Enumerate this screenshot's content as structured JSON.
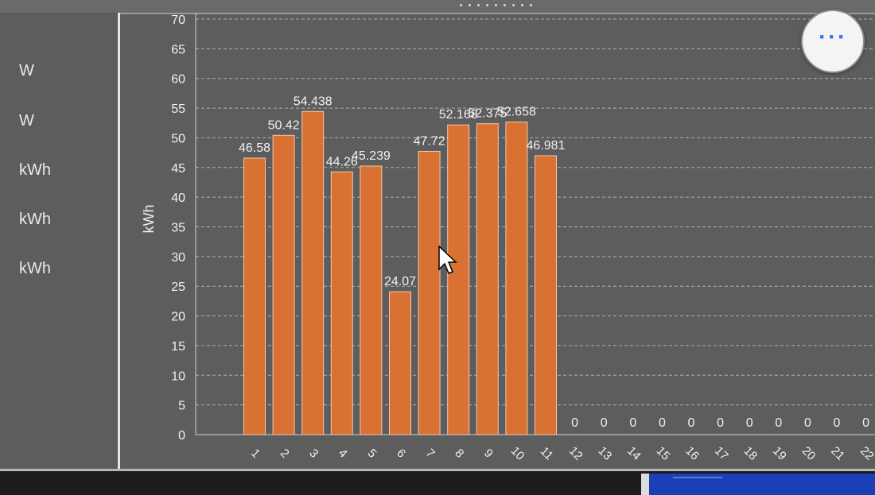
{
  "side_panel": {
    "unit_labels": [
      "W",
      "W",
      "kWh",
      "kWh",
      "kWh"
    ]
  },
  "toolbar": {
    "more_label": "···"
  },
  "colors": {
    "bar": "#d97133",
    "bar_stroke": "#f2c9ae",
    "background": "#5d5d5d",
    "grid": "#b0b0b0",
    "text": "#f0f0f0"
  },
  "icons": {
    "cursor": "arrow-cursor-icon",
    "more": "more-options-icon"
  },
  "chart_data": {
    "type": "bar",
    "ylabel": "kWh",
    "ylim": [
      0,
      70
    ],
    "yticks": [
      0,
      5,
      10,
      15,
      20,
      25,
      30,
      35,
      40,
      45,
      50,
      55,
      60,
      65,
      70
    ],
    "grid": true,
    "categories": [
      "1",
      "2",
      "3",
      "4",
      "5",
      "6",
      "7",
      "8",
      "9",
      "10",
      "11",
      "12",
      "13",
      "14",
      "15",
      "16",
      "17",
      "18",
      "19",
      "20",
      "21",
      "22"
    ],
    "values": [
      46.58,
      50.42,
      54.438,
      44.26,
      45.239,
      24.07,
      47.72,
      52.168,
      52.375,
      52.658,
      46.981,
      0,
      0,
      0,
      0,
      0,
      0,
      0,
      0,
      0,
      0,
      0
    ],
    "value_labels": [
      "46.58",
      "50.42",
      "54.438",
      "44.26",
      "45.239",
      "24.07",
      "47.72",
      "52.168",
      "52.375",
      "52.658",
      "46.981",
      "0",
      "0",
      "0",
      "0",
      "0",
      "0",
      "0",
      "0",
      "0",
      "0",
      "0"
    ]
  }
}
